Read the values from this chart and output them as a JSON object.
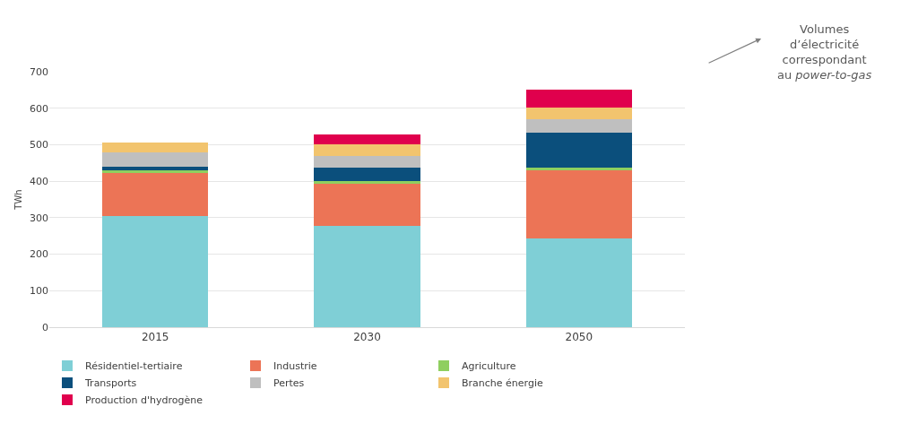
{
  "chart_data": {
    "type": "bar",
    "stacked": true,
    "ylabel": "TWh",
    "categories": [
      "2015",
      "2030",
      "2050"
    ],
    "series": [
      {
        "name": "Résidentiel-tertiaire",
        "color": "#7fcfd6",
        "values": [
          305,
          277,
          244
        ]
      },
      {
        "name": "Industrie",
        "color": "#ec7456",
        "values": [
          117,
          117,
          186
        ]
      },
      {
        "name": "Agriculture",
        "color": "#8fcf5f",
        "values": [
          8,
          7,
          6
        ]
      },
      {
        "name": "Transports",
        "color": "#0b4f7c",
        "values": [
          10,
          35,
          96
        ]
      },
      {
        "name": "Pertes",
        "color": "#bfbfbf",
        "values": [
          40,
          33,
          37
        ]
      },
      {
        "name": "Branche énergie",
        "color": "#f2c46e",
        "values": [
          27,
          31,
          32
        ]
      },
      {
        "name": "Production d'hydrogène",
        "color": "#e0004d",
        "values": [
          0,
          27,
          50
        ]
      }
    ],
    "ylim": [
      0,
      700
    ],
    "yticks": [
      0,
      100,
      200,
      300,
      400,
      500,
      600,
      700
    ],
    "grid": "y",
    "legend": "bottom",
    "annotations": [
      "Volumes d’électricité correspondant au power-to-gas"
    ]
  }
}
